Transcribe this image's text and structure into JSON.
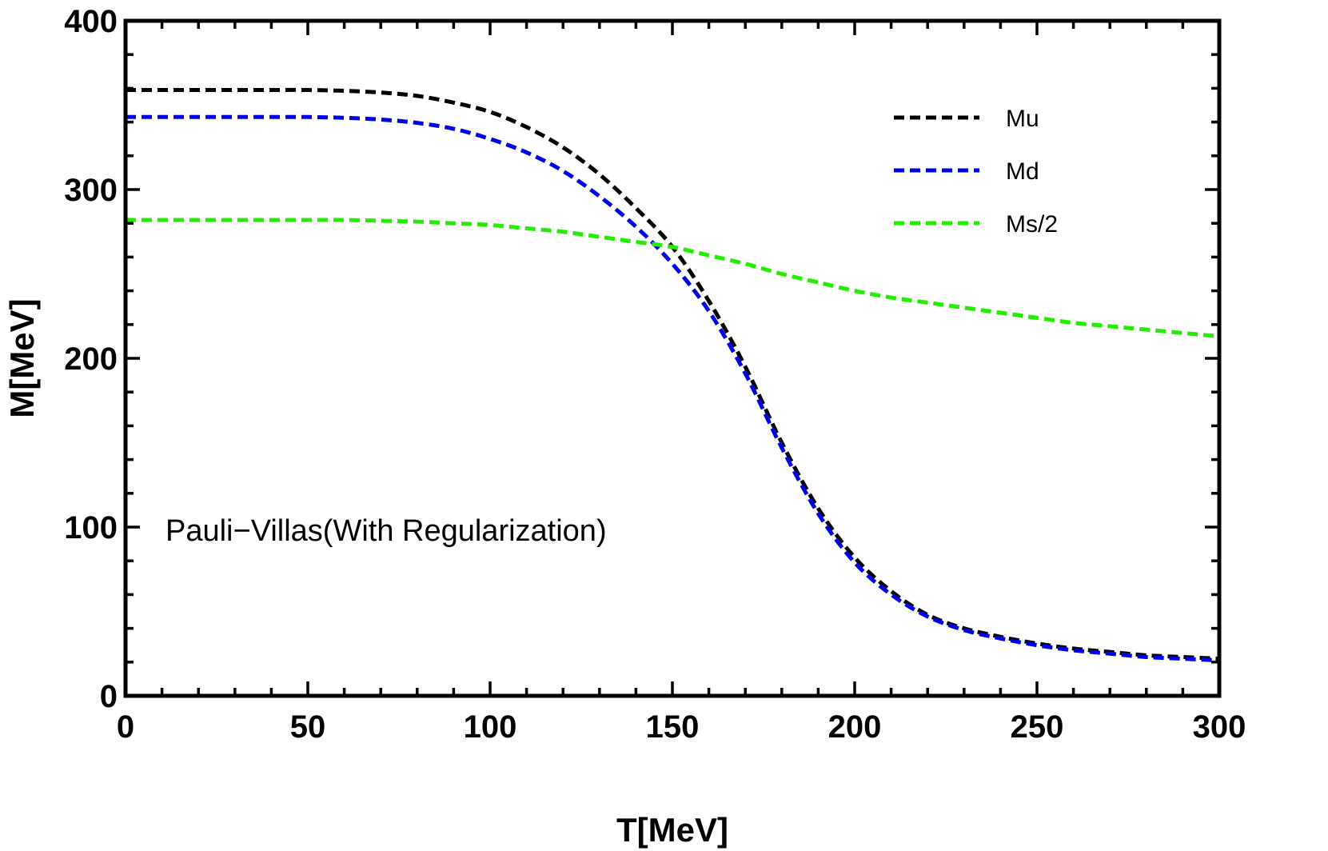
{
  "chart_data": {
    "type": "line",
    "title": "",
    "xlabel": "T[MeV]",
    "ylabel": "M[MeV]",
    "xlim": [
      0,
      300
    ],
    "ylim": [
      0,
      400
    ],
    "xticks": [
      0,
      50,
      100,
      150,
      200,
      250,
      300
    ],
    "yticks": [
      0,
      100,
      200,
      300,
      400
    ],
    "grid": false,
    "legend_position": "top-right",
    "annotation": "Pauli−Villas(With Regularization)",
    "line_style": "dashed",
    "x": [
      0,
      10,
      20,
      30,
      40,
      50,
      60,
      70,
      80,
      90,
      100,
      110,
      120,
      130,
      140,
      150,
      160,
      170,
      180,
      190,
      200,
      210,
      220,
      230,
      240,
      250,
      260,
      270,
      280,
      290,
      300
    ],
    "series": [
      {
        "name": "Mu",
        "color": "#000000",
        "values": [
          359,
          359,
          359,
          359,
          359,
          359,
          358.5,
          357.5,
          355.5,
          351.5,
          346,
          337,
          325,
          309,
          289,
          266,
          234,
          195,
          150,
          111,
          82,
          62,
          48,
          40,
          35,
          31,
          28,
          26,
          24,
          23,
          22
        ]
      },
      {
        "name": "Md",
        "color": "#0000ee",
        "values": [
          343,
          343,
          343,
          343,
          343,
          343,
          342.5,
          341.5,
          339.5,
          336,
          330,
          322,
          311,
          296,
          278,
          256,
          228,
          191,
          147,
          108,
          79,
          60,
          47,
          39,
          34,
          30,
          27,
          25,
          23,
          22,
          21
        ]
      },
      {
        "name": "Ms/2",
        "color": "#22ee00",
        "values": [
          282,
          282,
          282,
          282,
          282,
          282,
          282,
          281.5,
          281,
          280,
          279,
          277,
          275,
          272,
          269,
          266,
          261,
          256,
          250,
          245,
          240,
          236,
          233,
          230,
          227,
          224,
          221,
          219,
          217,
          215,
          213
        ]
      }
    ]
  }
}
